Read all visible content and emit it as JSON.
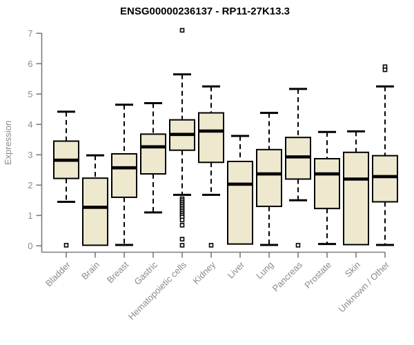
{
  "chart_data": {
    "type": "boxplot",
    "title": "ENSG00000236137 - RP11-27K13.3",
    "ylabel": "Expression",
    "xlabel": "",
    "ylim": [
      0,
      7
    ],
    "yticks": [
      0,
      1,
      2,
      3,
      4,
      5,
      6,
      7
    ],
    "grid": false,
    "legend": false,
    "categories": [
      "Bladder",
      "Brain",
      "Breast",
      "Gastric",
      "Hematopoietic cells",
      "Kidney",
      "Liver",
      "Lung",
      "Pancreas",
      "Prostate",
      "Skin",
      "Unknown / Other"
    ],
    "boxes": [
      {
        "category": "Bladder",
        "whisker_low": 1.45,
        "q1": 2.22,
        "median": 2.82,
        "q3": 3.45,
        "whisker_high": 4.42,
        "outliers": [
          0.02
        ]
      },
      {
        "category": "Brain",
        "whisker_low": 0.02,
        "q1": 0.02,
        "median": 1.27,
        "q3": 2.23,
        "whisker_high": 2.98,
        "outliers": []
      },
      {
        "category": "Breast",
        "whisker_low": 0.03,
        "q1": 1.6,
        "median": 2.57,
        "q3": 3.03,
        "whisker_high": 4.65,
        "outliers": []
      },
      {
        "category": "Gastric",
        "whisker_low": 1.1,
        "q1": 2.37,
        "median": 3.26,
        "q3": 3.68,
        "whisker_high": 4.7,
        "outliers": []
      },
      {
        "category": "Hematopoietic cells",
        "whisker_low": 1.68,
        "q1": 3.15,
        "median": 3.67,
        "q3": 4.15,
        "whisker_high": 5.65,
        "outliers": [
          7.1,
          1.55,
          1.49,
          1.43,
          1.37,
          1.31,
          1.25,
          1.19,
          1.13,
          1.07,
          1.01,
          0.95,
          0.85,
          0.68,
          0.22,
          0.02
        ]
      },
      {
        "category": "Kidney",
        "whisker_low": 1.68,
        "q1": 2.75,
        "median": 3.78,
        "q3": 4.38,
        "whisker_high": 5.25,
        "outliers": [
          0.02
        ]
      },
      {
        "category": "Liver",
        "whisker_low": 0.06,
        "q1": 0.06,
        "median": 2.03,
        "q3": 2.78,
        "whisker_high": 3.62,
        "outliers": []
      },
      {
        "category": "Lung",
        "whisker_low": 0.03,
        "q1": 1.3,
        "median": 2.37,
        "q3": 3.17,
        "whisker_high": 4.38,
        "outliers": []
      },
      {
        "category": "Pancreas",
        "whisker_low": 1.5,
        "q1": 2.2,
        "median": 2.93,
        "q3": 3.57,
        "whisker_high": 5.17,
        "outliers": [
          0.02
        ]
      },
      {
        "category": "Prostate",
        "whisker_low": 0.06,
        "q1": 1.23,
        "median": 2.37,
        "q3": 2.87,
        "whisker_high": 3.75,
        "outliers": []
      },
      {
        "category": "Skin",
        "whisker_low": 0.04,
        "q1": 0.04,
        "median": 2.2,
        "q3": 3.08,
        "whisker_high": 3.77,
        "outliers": []
      },
      {
        "category": "Unknown / Other",
        "whisker_low": 0.03,
        "q1": 1.45,
        "median": 2.28,
        "q3": 2.97,
        "whisker_high": 5.25,
        "outliers": [
          5.9,
          5.8
        ]
      }
    ],
    "colors": {
      "box_fill": "#ede8ce",
      "box_stroke": "#000000",
      "median": "#000000",
      "whisker": "#000000",
      "outlier": "#000000",
      "axis": "#7a7a7a",
      "tick_label": "#8a8a8a",
      "title": "#000000",
      "background": "#ffffff"
    }
  }
}
